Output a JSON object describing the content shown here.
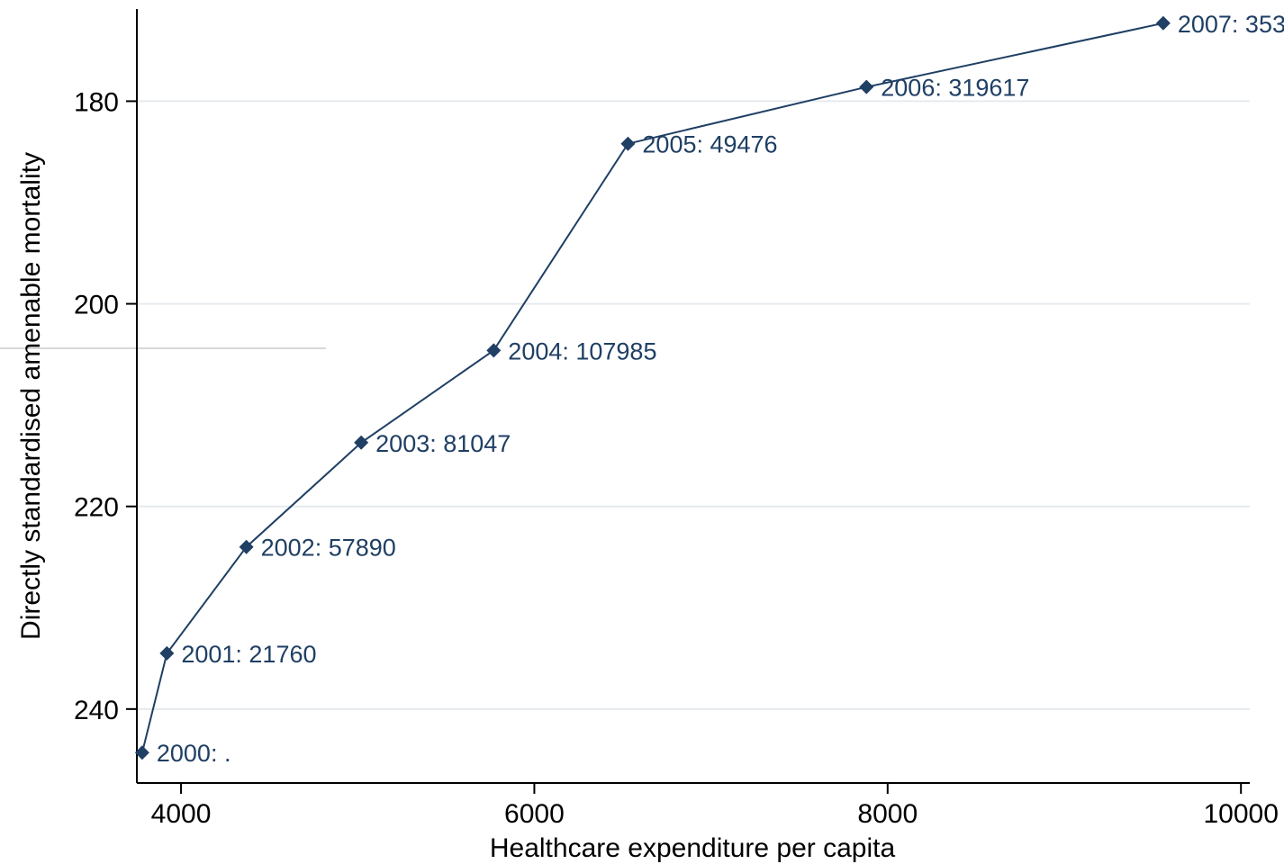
{
  "chart_data": {
    "type": "line",
    "xlabel": "Healthcare expenditure per capita",
    "ylabel": "Directly standardised amenable mortality",
    "xlim": [
      3750,
      10050
    ],
    "ylim": [
      170.9,
      247.3
    ],
    "y_reversed": true,
    "x_ticks": [
      4000,
      6000,
      8000,
      10000
    ],
    "y_ticks": [
      180,
      200,
      220,
      240
    ],
    "grid": "horizontal",
    "colors": {
      "series": "#1f3f64",
      "grid": "#e6eaee",
      "axis": "#000000"
    },
    "series": [
      {
        "marker": "diamond",
        "points": [
          {
            "x": 3780,
            "y": 244.3,
            "label": "2000: ."
          },
          {
            "x": 3920,
            "y": 234.5,
            "label": "2001: 21760"
          },
          {
            "x": 4370,
            "y": 224.0,
            "label": "2002: 57890"
          },
          {
            "x": 5020,
            "y": 213.7,
            "label": "2003: 81047"
          },
          {
            "x": 5770,
            "y": 204.6,
            "label": "2004: 107985"
          },
          {
            "x": 6530,
            "y": 184.2,
            "label": "2005: 49476"
          },
          {
            "x": 7880,
            "y": 178.6,
            "label": "2006: 319617"
          },
          {
            "x": 9560,
            "y": 172.3,
            "label": "2007: 353"
          }
        ]
      }
    ]
  }
}
